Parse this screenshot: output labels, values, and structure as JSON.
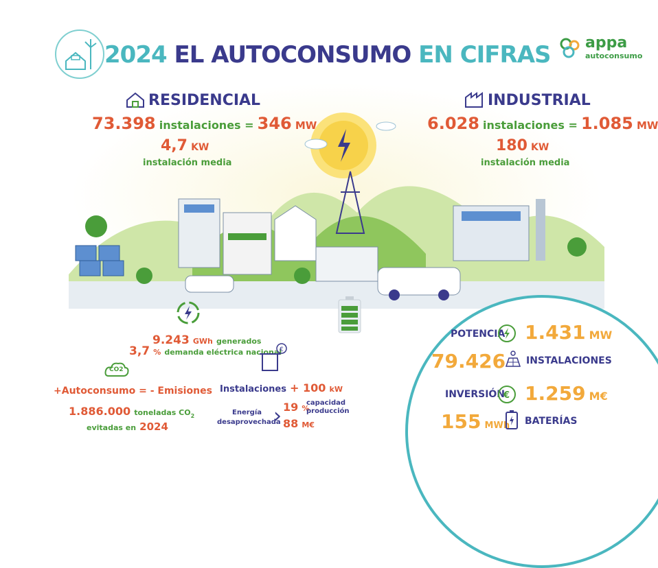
{
  "header": {
    "year": "2024",
    "title_main": "EL AUTOCONSUMO",
    "title_tail": "EN CIFRAS",
    "logo_main": "appa",
    "logo_sub": "autoconsumo"
  },
  "residential": {
    "title": "RESIDENCIAL",
    "installations": "73.398",
    "installations_label": "instalaciones =",
    "power": "346",
    "power_unit": "MW",
    "avg": "4,7",
    "avg_unit": "KW",
    "avg_label": "instalación media"
  },
  "industrial": {
    "title": "INDUSTRIAL",
    "installations": "6.028",
    "installations_label": "instalaciones =",
    "power": "1.085",
    "power_unit": "MW",
    "avg": "180",
    "avg_unit": "KW",
    "avg_label": "instalación media"
  },
  "generation": {
    "gwh": "9.243",
    "gwh_unit": "GWh",
    "gwh_label": "generados",
    "demand": "3,7",
    "demand_unit": "%",
    "demand_label": "demanda eléctrica nacional"
  },
  "emissions": {
    "co2_icon_text": "CO2",
    "slogan_a": "+Autoconsumo",
    "slogan_eq": "=",
    "slogan_b": "- Emisiones",
    "tons": "1.886.000",
    "tons_label": "toneladas CO",
    "tons_sub": "2",
    "avoided_label": "evitadas en",
    "avoided_year": "2024"
  },
  "waste": {
    "inst_label": "Instalaciones",
    "inst_value": "+ 100",
    "inst_unit": "kW",
    "energy_label": "Energía",
    "wasted_label": "desaprovechada",
    "pct": "19",
    "pct_unit": "%",
    "capacity_label": "capacidad",
    "production_label": "producción",
    "money": "88",
    "money_unit": "M€"
  },
  "kpis": {
    "power_label": "POTENCIA",
    "power_value": "1.431",
    "power_unit": "MW",
    "installs_value": "79.426",
    "installs_label": "INSTALACIONES",
    "investment_label": "INVERSIÓN",
    "investment_value": "1.259",
    "investment_unit": "M€",
    "battery_value": "155",
    "battery_unit": "MWh",
    "battery_label": "BATERÍAS"
  },
  "colors": {
    "teal": "#4ab7bf",
    "navy": "#3a3a8c",
    "orange": "#e05a36",
    "green": "#4a9d3a",
    "amber": "#f2a93b"
  }
}
